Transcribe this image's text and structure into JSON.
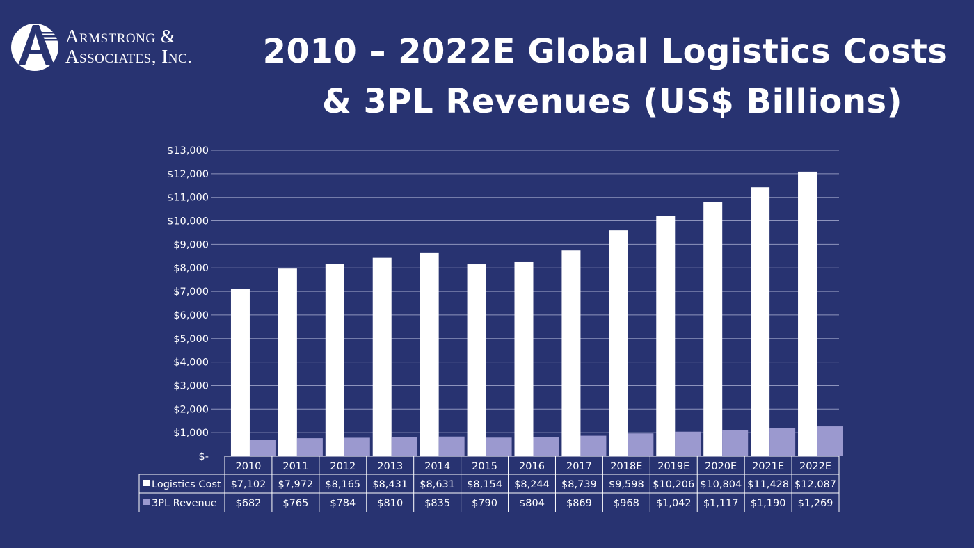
{
  "logo": {
    "line1": "Armstrong &",
    "line2": "Associates, Inc.",
    "icon": "armstrong-a-circle-logo"
  },
  "title": {
    "line1": "2010 – 2022E Global Logistics Costs",
    "line2": "& 3PL Revenues (US$ Billions)"
  },
  "chart_data": {
    "type": "bar",
    "title": "2010 – 2022E Global Logistics Costs & 3PL Revenues (US$ Billions)",
    "xlabel": "",
    "ylabel": "",
    "ylim": [
      0,
      13000
    ],
    "yticks": [
      0,
      1000,
      2000,
      3000,
      4000,
      5000,
      6000,
      7000,
      8000,
      9000,
      10000,
      11000,
      12000,
      13000
    ],
    "ytick_labels": [
      "$-",
      "$1,000",
      "$2,000",
      "$3,000",
      "$4,000",
      "$5,000",
      "$6,000",
      "$7,000",
      "$8,000",
      "$9,000",
      "$10,000",
      "$11,000",
      "$12,000",
      "$13,000"
    ],
    "grid": true,
    "legend": "data-table-below",
    "categories": [
      "2010",
      "2011",
      "2012",
      "2013",
      "2014",
      "2015",
      "2016",
      "2017",
      "2018E",
      "2019E",
      "2020E",
      "2021E",
      "2022E"
    ],
    "series": [
      {
        "name": "Logistics Cost",
        "color": "#ffffff",
        "values": [
          7102,
          7972,
          8165,
          8431,
          8631,
          8154,
          8244,
          8739,
          9598,
          10206,
          10804,
          11428,
          12087
        ],
        "labels": [
          "$7,102",
          "$7,972",
          "$8,165",
          "$8,431",
          "$8,631",
          "$8,154",
          "$8,244",
          "$8,739",
          "$9,598",
          "$10,206",
          "$10,804",
          "$11,428",
          "$12,087"
        ]
      },
      {
        "name": "3PL Revenue",
        "color": "#9b99cf",
        "values": [
          682,
          765,
          784,
          810,
          835,
          790,
          804,
          869,
          968,
          1042,
          1117,
          1190,
          1269
        ],
        "labels": [
          "$682",
          "$765",
          "$784",
          "$810",
          "$835",
          "$790",
          "$804",
          "$869",
          "$968",
          "$1,042",
          "$1,117",
          "$1,190",
          "$1,269"
        ]
      }
    ]
  },
  "colors": {
    "background": "#283371",
    "gridline": "#8e94bd",
    "logistics_cost": "#ffffff",
    "tpl_revenue": "#9b99cf"
  }
}
